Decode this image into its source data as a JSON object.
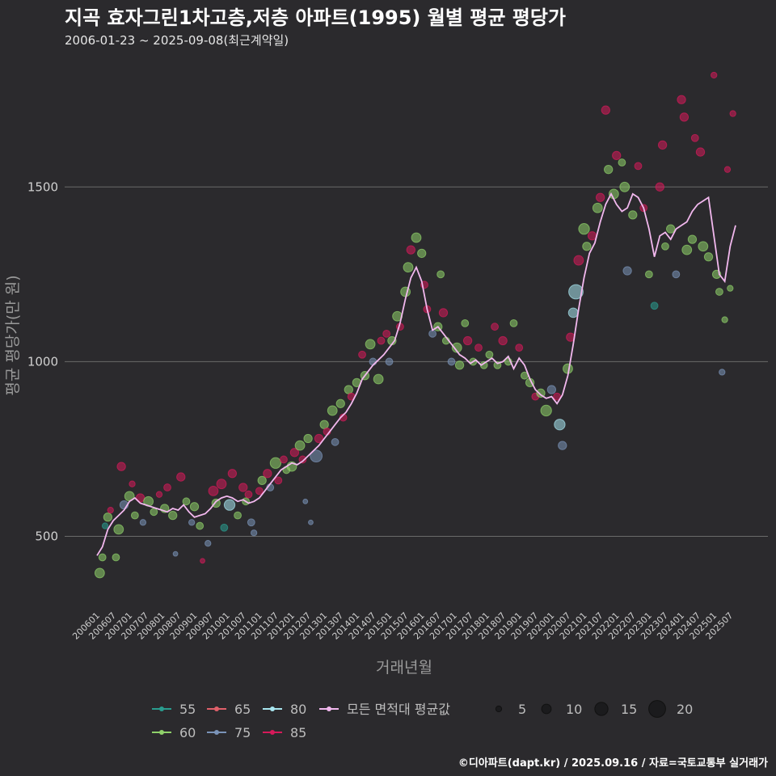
{
  "header": {
    "title": "지곡 효자그린1차고층,저층 아파트(1995) 월별 평균 평당가",
    "subtitle": "2006-01-23 ~ 2025-09-08(최근계약일)"
  },
  "caption": "©디아파트(dapt.kr) / 2025.09.16 / 자료=국토교통부 실거래가",
  "chart_data": {
    "type": "scatter",
    "xlabel": "거래년월",
    "ylabel": "평균 평당가(만 원)",
    "ylim": [
      300,
      1850
    ],
    "yticks": [
      500,
      1000,
      1500
    ],
    "grid": true,
    "x_start": "2006-01",
    "x_end": "2025-09",
    "xtick_labels": [
      "200601",
      "200607",
      "200701",
      "200707",
      "200801",
      "200807",
      "200901",
      "200907",
      "201001",
      "201007",
      "201101",
      "201107",
      "201201",
      "201207",
      "201301",
      "201307",
      "201401",
      "201407",
      "201501",
      "201507",
      "201601",
      "201607",
      "201701",
      "201707",
      "201801",
      "201807",
      "201901",
      "201907",
      "202001",
      "202007",
      "202101",
      "202107",
      "202201",
      "202207",
      "202301",
      "202307",
      "202401",
      "202407",
      "202501",
      "202507"
    ],
    "area_series": [
      {
        "name": "55",
        "color": "#2a9d8f"
      },
      {
        "name": "60",
        "color": "#8fd16a"
      },
      {
        "name": "65",
        "color": "#e0606a"
      },
      {
        "name": "75",
        "color": "#7a93b8"
      },
      {
        "name": "80",
        "color": "#a8e6f0"
      },
      {
        "name": "85",
        "color": "#d6195a"
      }
    ],
    "avg_series": {
      "name": "모든 면적대 평균값",
      "color": "#f2b8ee"
    },
    "size_legend": [
      5,
      10,
      15,
      20
    ],
    "monthly_average": [
      [
        "2006-01",
        445
      ],
      [
        "2006-03",
        470
      ],
      [
        "2006-05",
        520
      ],
      [
        "2006-07",
        545
      ],
      [
        "2006-09",
        560
      ],
      [
        "2006-11",
        575
      ],
      [
        "2007-01",
        600
      ],
      [
        "2007-03",
        610
      ],
      [
        "2007-05",
        595
      ],
      [
        "2007-07",
        590
      ],
      [
        "2007-09",
        585
      ],
      [
        "2007-11",
        580
      ],
      [
        "2008-01",
        575
      ],
      [
        "2008-03",
        570
      ],
      [
        "2008-05",
        580
      ],
      [
        "2008-07",
        575
      ],
      [
        "2008-09",
        590
      ],
      [
        "2008-11",
        570
      ],
      [
        "2009-01",
        555
      ],
      [
        "2009-03",
        560
      ],
      [
        "2009-05",
        565
      ],
      [
        "2009-07",
        580
      ],
      [
        "2009-09",
        600
      ],
      [
        "2009-11",
        610
      ],
      [
        "2010-01",
        615
      ],
      [
        "2010-03",
        610
      ],
      [
        "2010-05",
        600
      ],
      [
        "2010-07",
        605
      ],
      [
        "2010-09",
        595
      ],
      [
        "2010-11",
        600
      ],
      [
        "2011-01",
        610
      ],
      [
        "2011-03",
        630
      ],
      [
        "2011-05",
        650
      ],
      [
        "2011-07",
        670
      ],
      [
        "2011-09",
        690
      ],
      [
        "2011-11",
        700
      ],
      [
        "2012-01",
        710
      ],
      [
        "2012-03",
        705
      ],
      [
        "2012-05",
        715
      ],
      [
        "2012-07",
        730
      ],
      [
        "2012-09",
        745
      ],
      [
        "2012-11",
        760
      ],
      [
        "2013-01",
        780
      ],
      [
        "2013-03",
        800
      ],
      [
        "2013-05",
        820
      ],
      [
        "2013-07",
        840
      ],
      [
        "2013-09",
        855
      ],
      [
        "2013-11",
        880
      ],
      [
        "2014-01",
        910
      ],
      [
        "2014-03",
        950
      ],
      [
        "2014-05",
        970
      ],
      [
        "2014-07",
        990
      ],
      [
        "2014-09",
        1005
      ],
      [
        "2014-11",
        1020
      ],
      [
        "2015-01",
        1040
      ],
      [
        "2015-03",
        1060
      ],
      [
        "2015-05",
        1110
      ],
      [
        "2015-07",
        1180
      ],
      [
        "2015-09",
        1240
      ],
      [
        "2015-11",
        1270
      ],
      [
        "2016-01",
        1230
      ],
      [
        "2016-03",
        1150
      ],
      [
        "2016-05",
        1090
      ],
      [
        "2016-07",
        1100
      ],
      [
        "2016-09",
        1080
      ],
      [
        "2016-11",
        1060
      ],
      [
        "2017-01",
        1040
      ],
      [
        "2017-03",
        1020
      ],
      [
        "2017-05",
        1010
      ],
      [
        "2017-07",
        995
      ],
      [
        "2017-09",
        1005
      ],
      [
        "2017-11",
        990
      ],
      [
        "2018-01",
        1000
      ],
      [
        "2018-03",
        1010
      ],
      [
        "2018-05",
        995
      ],
      [
        "2018-07",
        1000
      ],
      [
        "2018-09",
        1015
      ],
      [
        "2018-11",
        980
      ],
      [
        "2019-01",
        1010
      ],
      [
        "2019-03",
        990
      ],
      [
        "2019-05",
        950
      ],
      [
        "2019-07",
        920
      ],
      [
        "2019-09",
        905
      ],
      [
        "2019-11",
        895
      ],
      [
        "2020-01",
        900
      ],
      [
        "2020-03",
        880
      ],
      [
        "2020-05",
        905
      ],
      [
        "2020-07",
        960
      ],
      [
        "2020-09",
        1050
      ],
      [
        "2020-11",
        1150
      ],
      [
        "2021-01",
        1240
      ],
      [
        "2021-03",
        1310
      ],
      [
        "2021-05",
        1340
      ],
      [
        "2021-07",
        1400
      ],
      [
        "2021-09",
        1450
      ],
      [
        "2021-11",
        1480
      ],
      [
        "2022-01",
        1450
      ],
      [
        "2022-03",
        1430
      ],
      [
        "2022-05",
        1440
      ],
      [
        "2022-07",
        1480
      ],
      [
        "2022-09",
        1470
      ],
      [
        "2022-11",
        1440
      ],
      [
        "2023-01",
        1380
      ],
      [
        "2023-03",
        1300
      ],
      [
        "2023-05",
        1360
      ],
      [
        "2023-07",
        1370
      ],
      [
        "2023-09",
        1350
      ],
      [
        "2023-11",
        1380
      ],
      [
        "2024-01",
        1390
      ],
      [
        "2024-03",
        1400
      ],
      [
        "2024-05",
        1430
      ],
      [
        "2024-07",
        1450
      ],
      [
        "2024-09",
        1460
      ],
      [
        "2024-11",
        1470
      ],
      [
        "2025-01",
        1360
      ],
      [
        "2025-03",
        1250
      ],
      [
        "2025-05",
        1230
      ],
      [
        "2025-07",
        1330
      ],
      [
        "2025-09",
        1390
      ]
    ],
    "transactions": [
      [
        "2006-02",
        395,
        6,
        "60"
      ],
      [
        "2006-03",
        440,
        4,
        "60"
      ],
      [
        "2006-04",
        530,
        3,
        "55"
      ],
      [
        "2006-05",
        555,
        5,
        "60"
      ],
      [
        "2006-06",
        575,
        3,
        "85"
      ],
      [
        "2006-08",
        440,
        4,
        "60"
      ],
      [
        "2006-09",
        520,
        6,
        "60"
      ],
      [
        "2006-10",
        700,
        5,
        "85"
      ],
      [
        "2006-11",
        590,
        5,
        "75"
      ],
      [
        "2007-01",
        615,
        6,
        "60"
      ],
      [
        "2007-02",
        650,
        3,
        "85"
      ],
      [
        "2007-03",
        560,
        4,
        "60"
      ],
      [
        "2007-05",
        610,
        5,
        "85"
      ],
      [
        "2007-06",
        540,
        3,
        "75"
      ],
      [
        "2007-08",
        600,
        6,
        "60"
      ],
      [
        "2007-10",
        570,
        4,
        "60"
      ],
      [
        "2007-12",
        620,
        3,
        "85"
      ],
      [
        "2008-02",
        580,
        5,
        "60"
      ],
      [
        "2008-03",
        640,
        4,
        "85"
      ],
      [
        "2008-05",
        560,
        5,
        "60"
      ],
      [
        "2008-06",
        450,
        2,
        "75"
      ],
      [
        "2008-08",
        670,
        5,
        "85"
      ],
      [
        "2008-10",
        600,
        4,
        "60"
      ],
      [
        "2008-12",
        540,
        3,
        "75"
      ],
      [
        "2009-01",
        585,
        5,
        "60"
      ],
      [
        "2009-03",
        530,
        4,
        "60"
      ],
      [
        "2009-04",
        430,
        2,
        "85"
      ],
      [
        "2009-06",
        480,
        3,
        "75"
      ],
      [
        "2009-08",
        630,
        6,
        "85"
      ],
      [
        "2009-09",
        595,
        5,
        "60"
      ],
      [
        "2009-11",
        650,
        6,
        "85"
      ],
      [
        "2009-12",
        525,
        4,
        "55"
      ],
      [
        "2010-02",
        590,
        7,
        "80"
      ],
      [
        "2010-03",
        680,
        5,
        "85"
      ],
      [
        "2010-05",
        560,
        4,
        "60"
      ],
      [
        "2010-07",
        640,
        5,
        "85"
      ],
      [
        "2010-08",
        600,
        4,
        "60"
      ],
      [
        "2010-09",
        620,
        4,
        "85"
      ],
      [
        "2010-10",
        540,
        4,
        "75"
      ],
      [
        "2010-11",
        510,
        3,
        "75"
      ],
      [
        "2011-01",
        630,
        4,
        "85"
      ],
      [
        "2011-02",
        660,
        5,
        "60"
      ],
      [
        "2011-04",
        680,
        5,
        "85"
      ],
      [
        "2011-05",
        640,
        4,
        "75"
      ],
      [
        "2011-07",
        710,
        7,
        "60"
      ],
      [
        "2011-08",
        660,
        4,
        "85"
      ],
      [
        "2011-10",
        720,
        4,
        "85"
      ],
      [
        "2011-11",
        690,
        4,
        "60"
      ],
      [
        "2012-01",
        700,
        6,
        "60"
      ],
      [
        "2012-02",
        740,
        5,
        "85"
      ],
      [
        "2012-04",
        760,
        6,
        "60"
      ],
      [
        "2012-05",
        720,
        4,
        "85"
      ],
      [
        "2012-06",
        600,
        2,
        "75"
      ],
      [
        "2012-07",
        780,
        5,
        "60"
      ],
      [
        "2012-08",
        540,
        2,
        "75"
      ],
      [
        "2012-10",
        730,
        8,
        "75"
      ],
      [
        "2012-11",
        780,
        5,
        "85"
      ],
      [
        "2013-01",
        820,
        5,
        "60"
      ],
      [
        "2013-02",
        800,
        4,
        "85"
      ],
      [
        "2013-04",
        860,
        6,
        "60"
      ],
      [
        "2013-05",
        770,
        4,
        "75"
      ],
      [
        "2013-07",
        880,
        5,
        "60"
      ],
      [
        "2013-08",
        840,
        4,
        "85"
      ],
      [
        "2013-10",
        920,
        5,
        "60"
      ],
      [
        "2013-11",
        900,
        4,
        "85"
      ],
      [
        "2014-01",
        940,
        5,
        "60"
      ],
      [
        "2014-03",
        1020,
        4,
        "85"
      ],
      [
        "2014-04",
        960,
        5,
        "60"
      ],
      [
        "2014-06",
        1050,
        6,
        "60"
      ],
      [
        "2014-07",
        1000,
        4,
        "75"
      ],
      [
        "2014-09",
        950,
        6,
        "60"
      ],
      [
        "2014-10",
        1060,
        4,
        "85"
      ],
      [
        "2014-12",
        1080,
        4,
        "85"
      ],
      [
        "2015-01",
        1000,
        4,
        "75"
      ],
      [
        "2015-02",
        1060,
        5,
        "60"
      ],
      [
        "2015-04",
        1130,
        6,
        "60"
      ],
      [
        "2015-05",
        1100,
        4,
        "85"
      ],
      [
        "2015-07",
        1200,
        6,
        "60"
      ],
      [
        "2015-08",
        1270,
        6,
        "60"
      ],
      [
        "2015-09",
        1320,
        5,
        "85"
      ],
      [
        "2015-11",
        1355,
        6,
        "60"
      ],
      [
        "2016-01",
        1310,
        5,
        "60"
      ],
      [
        "2016-02",
        1220,
        4,
        "85"
      ],
      [
        "2016-03",
        1150,
        4,
        "85"
      ],
      [
        "2016-05",
        1080,
        4,
        "75"
      ],
      [
        "2016-07",
        1100,
        5,
        "60"
      ],
      [
        "2016-08",
        1250,
        4,
        "60"
      ],
      [
        "2016-09",
        1140,
        5,
        "85"
      ],
      [
        "2016-10",
        1060,
        4,
        "60"
      ],
      [
        "2016-12",
        1000,
        4,
        "75"
      ],
      [
        "2017-02",
        1040,
        6,
        "60"
      ],
      [
        "2017-03",
        990,
        5,
        "60"
      ],
      [
        "2017-05",
        1110,
        4,
        "60"
      ],
      [
        "2017-06",
        1060,
        5,
        "85"
      ],
      [
        "2017-08",
        1000,
        4,
        "60"
      ],
      [
        "2017-10",
        1040,
        4,
        "85"
      ],
      [
        "2017-12",
        990,
        4,
        "60"
      ],
      [
        "2018-02",
        1020,
        4,
        "60"
      ],
      [
        "2018-04",
        1100,
        4,
        "85"
      ],
      [
        "2018-05",
        990,
        4,
        "60"
      ],
      [
        "2018-07",
        1060,
        5,
        "85"
      ],
      [
        "2018-09",
        1000,
        4,
        "60"
      ],
      [
        "2018-11",
        1110,
        4,
        "60"
      ],
      [
        "2019-01",
        1040,
        4,
        "85"
      ],
      [
        "2019-03",
        960,
        4,
        "60"
      ],
      [
        "2019-05",
        940,
        5,
        "60"
      ],
      [
        "2019-07",
        900,
        4,
        "85"
      ],
      [
        "2019-09",
        910,
        5,
        "60"
      ],
      [
        "2019-11",
        860,
        7,
        "60"
      ],
      [
        "2020-01",
        920,
        5,
        "75"
      ],
      [
        "2020-03",
        900,
        4,
        "85"
      ],
      [
        "2020-04",
        820,
        7,
        "80"
      ],
      [
        "2020-05",
        760,
        5,
        "75"
      ],
      [
        "2020-07",
        980,
        6,
        "60"
      ],
      [
        "2020-08",
        1070,
        5,
        "85"
      ],
      [
        "2020-09",
        1140,
        6,
        "80"
      ],
      [
        "2020-10",
        1200,
        10,
        "80"
      ],
      [
        "2020-11",
        1290,
        6,
        "85"
      ],
      [
        "2021-01",
        1380,
        7,
        "60"
      ],
      [
        "2021-02",
        1330,
        5,
        "60"
      ],
      [
        "2021-04",
        1360,
        5,
        "85"
      ],
      [
        "2021-06",
        1440,
        6,
        "60"
      ],
      [
        "2021-07",
        1470,
        5,
        "85"
      ],
      [
        "2021-09",
        1720,
        5,
        "85"
      ],
      [
        "2021-10",
        1550,
        5,
        "60"
      ],
      [
        "2021-12",
        1480,
        6,
        "60"
      ],
      [
        "2022-01",
        1590,
        5,
        "85"
      ],
      [
        "2022-03",
        1570,
        4,
        "60"
      ],
      [
        "2022-04",
        1500,
        6,
        "60"
      ],
      [
        "2022-05",
        1260,
        5,
        "75"
      ],
      [
        "2022-07",
        1420,
        5,
        "60"
      ],
      [
        "2022-09",
        1560,
        4,
        "85"
      ],
      [
        "2022-11",
        1440,
        4,
        "85"
      ],
      [
        "2023-01",
        1250,
        4,
        "60"
      ],
      [
        "2023-03",
        1160,
        4,
        "55"
      ],
      [
        "2023-05",
        1500,
        5,
        "85"
      ],
      [
        "2023-06",
        1620,
        5,
        "85"
      ],
      [
        "2023-07",
        1330,
        4,
        "60"
      ],
      [
        "2023-09",
        1380,
        5,
        "60"
      ],
      [
        "2023-11",
        1250,
        4,
        "75"
      ],
      [
        "2024-01",
        1750,
        5,
        "85"
      ],
      [
        "2024-02",
        1700,
        5,
        "85"
      ],
      [
        "2024-03",
        1320,
        6,
        "60"
      ],
      [
        "2024-05",
        1350,
        5,
        "60"
      ],
      [
        "2024-06",
        1640,
        4,
        "85"
      ],
      [
        "2024-08",
        1600,
        5,
        "85"
      ],
      [
        "2024-09",
        1330,
        6,
        "60"
      ],
      [
        "2024-11",
        1300,
        5,
        "60"
      ],
      [
        "2025-01",
        1820,
        3,
        "85"
      ],
      [
        "2025-02",
        1250,
        5,
        "60"
      ],
      [
        "2025-03",
        1200,
        4,
        "60"
      ],
      [
        "2025-04",
        970,
        3,
        "75"
      ],
      [
        "2025-05",
        1120,
        3,
        "60"
      ],
      [
        "2025-06",
        1550,
        3,
        "85"
      ],
      [
        "2025-07",
        1210,
        3,
        "60"
      ],
      [
        "2025-08",
        1710,
        3,
        "85"
      ]
    ]
  }
}
